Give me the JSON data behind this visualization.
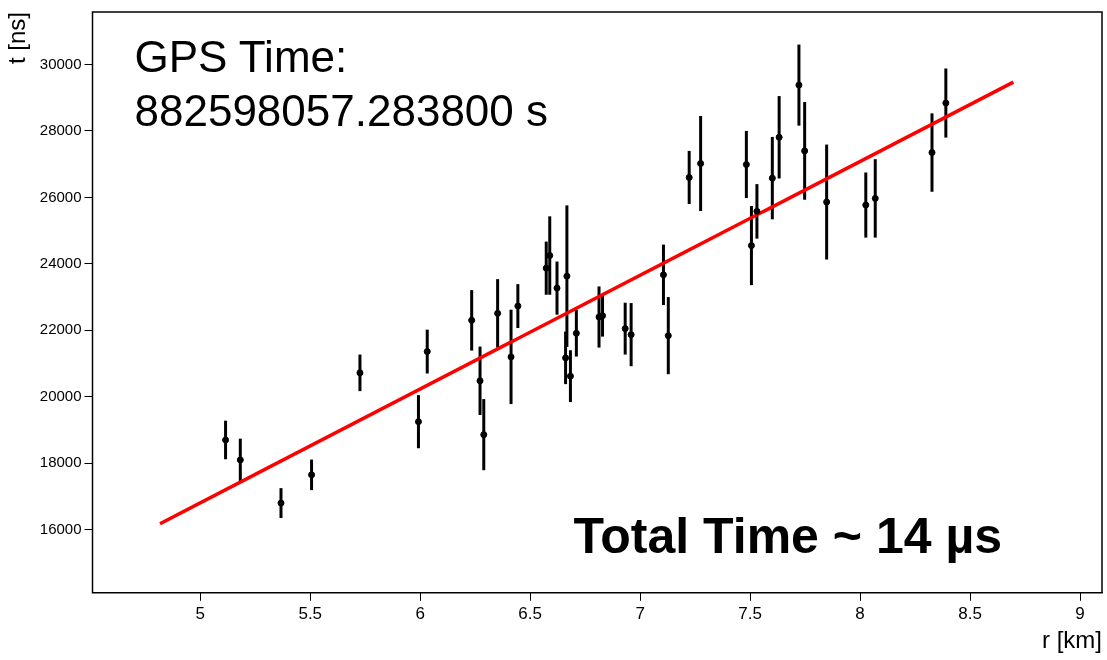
{
  "chart_data": {
    "type": "scatter",
    "xlabel": "r [km]",
    "ylabel": "t [ns]",
    "annotations": [
      "GPS Time:\n882598057.283800 s",
      "Total Time ~ 14 µs"
    ],
    "xlim": [
      4.51,
      9.1
    ],
    "xticks": [
      5,
      5.5,
      6,
      6.5,
      7,
      7.5,
      8,
      8.5,
      9
    ],
    "ylim": [
      14100,
      31580
    ],
    "yticks": [
      16000,
      18000,
      20000,
      22000,
      24000,
      26000,
      28000,
      30000
    ],
    "grid": false,
    "legend": false,
    "marker": "circle",
    "series": [
      {
        "color": "#000000",
        "x": [
          5.115,
          5.182,
          5.367,
          5.506,
          5.726,
          5.992,
          6.032,
          6.234,
          6.272,
          6.289,
          6.352,
          6.413,
          6.444,
          6.573,
          6.589,
          6.622,
          6.661,
          6.667,
          6.683,
          6.71,
          6.813,
          6.829,
          6.932,
          6.959,
          7.106,
          7.128,
          7.223,
          7.275,
          7.483,
          7.506,
          7.531,
          7.601,
          7.632,
          7.722,
          7.748,
          7.848,
          8.026,
          8.069,
          8.327,
          8.39
        ],
        "values": [
          18700,
          18100,
          16800,
          17650,
          20720,
          19250,
          21360,
          22300,
          20480,
          18860,
          22510,
          21200,
          22730,
          23870,
          24250,
          23270,
          21170,
          23630,
          20620,
          21910,
          22400,
          22440,
          22050,
          21870,
          23670,
          21840,
          26600,
          27020,
          26990,
          24550,
          25580,
          26580,
          27810,
          29380,
          27400,
          25860,
          25770,
          25970,
          27350,
          28840
        ],
        "errors": [
          580,
          640,
          450,
          460,
          550,
          800,
          660,
          910,
          1030,
          1070,
          1030,
          1420,
          660,
          800,
          1180,
          800,
          790,
          2130,
          780,
          700,
          920,
          630,
          780,
          950,
          910,
          1160,
          800,
          1430,
          1010,
          1190,
          820,
          1240,
          1240,
          1220,
          1470,
          1730,
          980,
          1180,
          1180,
          1040
        ]
      },
      {
        "type": "line",
        "color": "#ff0000",
        "line_style": "solid",
        "marker": "none",
        "x": [
          4.817,
          8.697
        ],
        "values": [
          16180,
          29470
        ]
      }
    ]
  }
}
